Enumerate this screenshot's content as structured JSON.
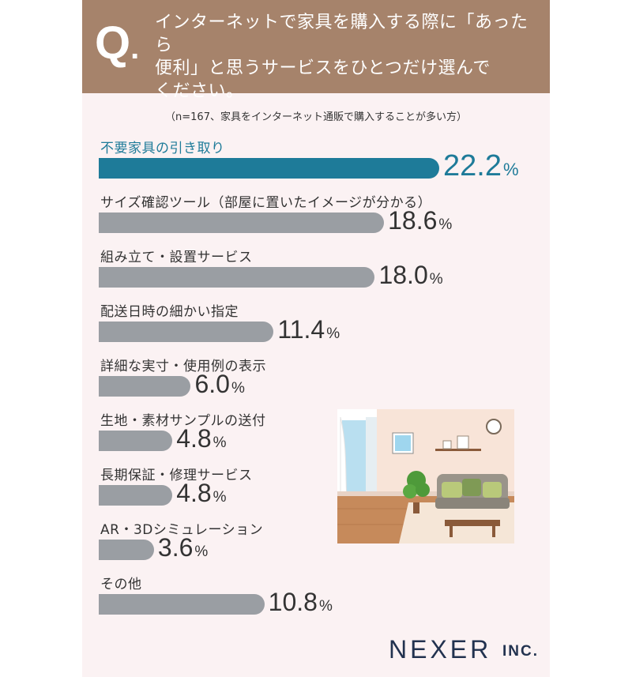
{
  "question": {
    "mark": "Q",
    "mark_dot": ".",
    "lines": [
      "インターネットで家具を購入する際に「あったら",
      "便利」と思うサービスをひとつだけ選んで",
      "ください。"
    ]
  },
  "note": "（n=167、家具をインターネット通販で購入することが多い方）",
  "chart_data": {
    "type": "bar",
    "orientation": "horizontal",
    "categories": [
      "不要家具の引き取り",
      "サイズ確認ツール（部屋に置いたイメージが分かる）",
      "組み立て・設置サービス",
      "配送日時の細かい指定",
      "詳細な実寸・使用例の表示",
      "生地・素材サンプルの送付",
      "長期保証・修理サービス",
      "AR・3Dシミュレーション",
      "その他"
    ],
    "values": [
      22.2,
      18.6,
      18.0,
      11.4,
      6.0,
      4.8,
      4.8,
      3.6,
      10.8
    ],
    "value_labels": [
      "22.2",
      "18.6",
      "18.0",
      "11.4",
      "6.0",
      "4.8",
      "4.8",
      "3.6",
      "10.8"
    ],
    "unit": "%",
    "highlight_index": 0,
    "colors": {
      "highlight": "#1e7b99",
      "default": "#9a9ea3"
    }
  },
  "brand": {
    "name": "NEXER",
    "suffix": "INC."
  },
  "illustration": {
    "icon": "living-room-illustration"
  }
}
